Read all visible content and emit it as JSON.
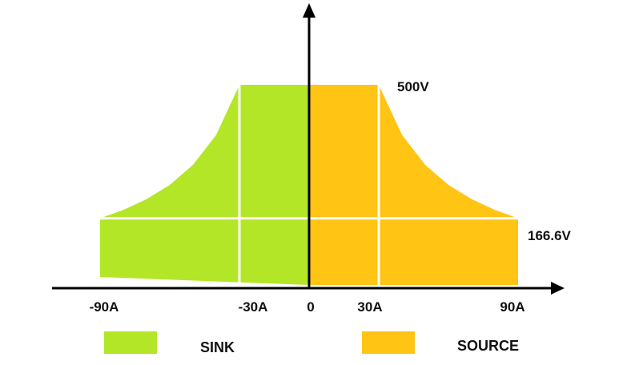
{
  "chart_data": {
    "type": "area",
    "title": "",
    "x_ticks": [
      {
        "value": -90,
        "label": "-90A"
      },
      {
        "value": -30,
        "label": "-30A"
      },
      {
        "value": 0,
        "label": "0"
      },
      {
        "value": 30,
        "label": "30A"
      },
      {
        "value": 90,
        "label": "90A"
      }
    ],
    "y_levels": [
      {
        "value": 500,
        "label": "500V"
      },
      {
        "value": 166.6,
        "label": "166.6V"
      }
    ],
    "xlim": [
      -90,
      90
    ],
    "ylim": [
      0,
      500
    ],
    "series": [
      {
        "name": "SINK",
        "color": "#b3e627",
        "x": [
          -90,
          -80,
          -70,
          -60,
          -50,
          -40,
          -30,
          0
        ],
        "y": [
          166.6,
          187.5,
          214.3,
          250,
          300,
          375,
          500,
          500
        ]
      },
      {
        "name": "SOURCE",
        "color": "#ffc414",
        "x": [
          0,
          30,
          40,
          50,
          60,
          70,
          80,
          90
        ],
        "y": [
          500,
          500,
          375,
          300,
          250,
          214.3,
          187.5,
          166.6
        ]
      }
    ],
    "grid_color": "#ffffff",
    "legend": "bottom"
  }
}
